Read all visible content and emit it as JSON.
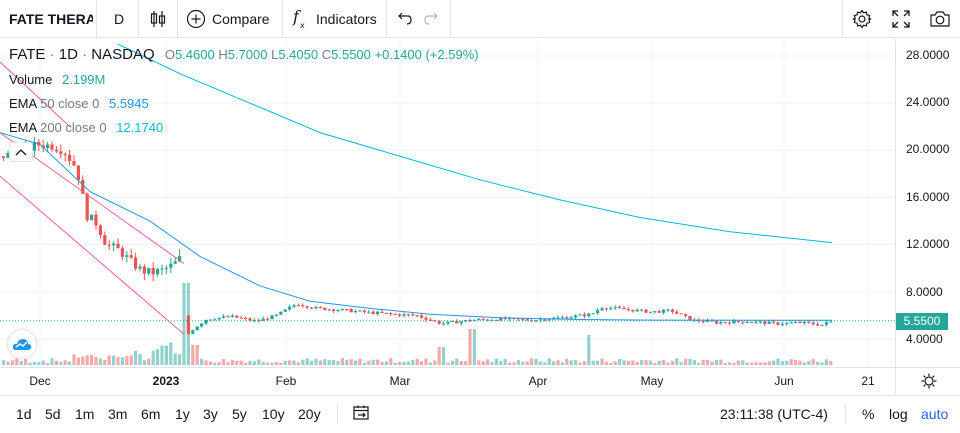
{
  "toolbar": {
    "symbol": "FATE THERA",
    "interval": "D",
    "compare_label": "Compare",
    "indicators_label": "Indicators",
    "icons": [
      "bars-icon",
      "plus-circle-icon",
      "fx-icon",
      "undo-icon",
      "redo-icon",
      "gear-icon",
      "fullscreen-icon",
      "camera-icon"
    ]
  },
  "legend": {
    "ticker": "FATE",
    "interval": "1D",
    "exchange": "NASDAQ",
    "open": "5.4600",
    "high": "5.7000",
    "low": "5.4050",
    "close": "5.5500",
    "change": "+0.1400 (+2.59%)",
    "volume_label": "Volume",
    "volume_value": "2.199M",
    "ema50_label": "EMA",
    "ema50_params": "50 close 0",
    "ema50_value": "5.5945",
    "ema200_label": "EMA",
    "ema200_params": "200 close 0",
    "ema200_value": "12.1740"
  },
  "price_axis": {
    "ticks": [
      "28.0000",
      "24.0000",
      "20.0000",
      "16.0000",
      "12.0000",
      "8.0000",
      "4.0000"
    ],
    "last_price": "5.5500"
  },
  "time_axis": {
    "ticks": [
      "Dec",
      "2023",
      "Feb",
      "Mar",
      "Apr",
      "May",
      "Jun",
      "21"
    ]
  },
  "bottom_bar": {
    "ranges": [
      "1d",
      "5d",
      "1m",
      "3m",
      "6m",
      "1y",
      "3y",
      "5y",
      "10y",
      "20y"
    ],
    "clock": "23:11:38 (UTC-4)",
    "percent_label": "%",
    "log_label": "log",
    "auto_label": "auto"
  },
  "colors": {
    "up": "#26a69a",
    "down": "#ef5350",
    "ema50": "#2196f3",
    "ema200": "#00bcd4",
    "channel": "#f06292",
    "auto_active": "#2962ff"
  },
  "chart_data": {
    "type": "candlestick",
    "symbol": "FATE",
    "interval": "1D",
    "ylim": [
      2.5,
      29.5
    ],
    "price_ticks": [
      28,
      24,
      20,
      16,
      12,
      8,
      4
    ],
    "x_labels": [
      "Dec",
      "2023",
      "Feb",
      "Mar",
      "Apr",
      "May",
      "Jun",
      "21"
    ],
    "last_price": 5.55,
    "ema50_path": [
      [
        21.5,
        0
      ],
      [
        20.5,
        40
      ],
      [
        16.5,
        90
      ],
      [
        14,
        150
      ],
      [
        11,
        200
      ],
      [
        8.5,
        260
      ],
      [
        7.2,
        310
      ],
      [
        6.6,
        370
      ],
      [
        6.1,
        430
      ],
      [
        5.8,
        500
      ],
      [
        5.65,
        580
      ],
      [
        5.6,
        660
      ],
      [
        5.59,
        760
      ],
      [
        5.5945,
        832
      ]
    ],
    "ema200_path": [
      [
        29,
        118
      ],
      [
        26.5,
        180
      ],
      [
        24,
        250
      ],
      [
        21.5,
        320
      ],
      [
        19.5,
        400
      ],
      [
        17.5,
        480
      ],
      [
        15.8,
        560
      ],
      [
        14.3,
        640
      ],
      [
        13.1,
        730
      ],
      [
        12.174,
        832
      ]
    ],
    "candles_summary": "Daily candles from late Nov 2022 to mid Jun 2023"
  }
}
